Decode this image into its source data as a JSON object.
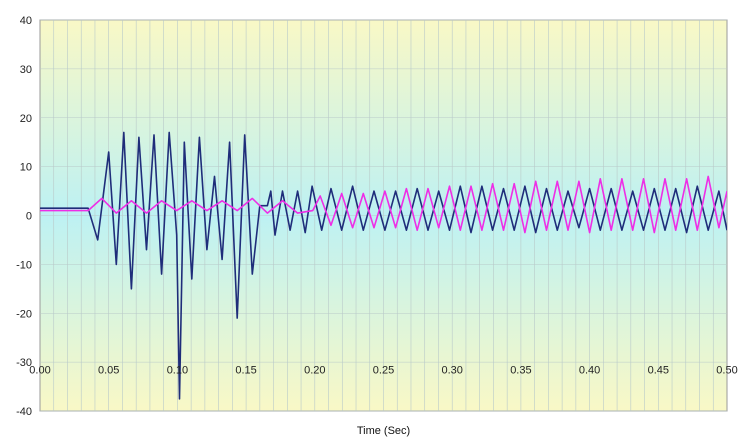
{
  "chart_data": {
    "type": "line",
    "title": "",
    "xlabel": "Time (Sec)",
    "ylabel": "",
    "xlim": [
      0,
      0.5
    ],
    "ylim": [
      -40,
      40
    ],
    "x_ticks": [
      0.0,
      0.05,
      0.1,
      0.15,
      0.2,
      0.25,
      0.3,
      0.35,
      0.4,
      0.45,
      0.5
    ],
    "x_tick_labels": [
      "0.00",
      "0.05",
      "0.10",
      "0.15",
      "0.20",
      "0.25",
      "0.30",
      "0.35",
      "0.40",
      "0.45",
      "0.50"
    ],
    "y_ticks": [
      -40,
      -30,
      -20,
      -10,
      0,
      10,
      20,
      30,
      40
    ],
    "y_tick_labels": [
      "-40",
      "-30",
      "-20",
      "-10",
      "0",
      "10",
      "20",
      "30",
      "40"
    ],
    "x_minor_step": 0.01,
    "grid": true,
    "legend": "none",
    "background_gradient": [
      "#f9f8c6",
      "#bdf1f3",
      "#f9f8c6"
    ],
    "series": [
      {
        "color": "#1f2d7a",
        "x": [
          0.0,
          0.035,
          0.042,
          0.05,
          0.0555,
          0.061,
          0.0665,
          0.072,
          0.0775,
          0.083,
          0.0885,
          0.094,
          0.0995,
          0.1015,
          0.105,
          0.1105,
          0.116,
          0.1215,
          0.127,
          0.1325,
          0.138,
          0.1435,
          0.149,
          0.1545,
          0.16,
          0.1655,
          0.168,
          0.171,
          0.1765,
          0.182,
          0.1875,
          0.193,
          0.198,
          0.205,
          0.2118,
          0.2196,
          0.2275,
          0.2353,
          0.2431,
          0.251,
          0.2588,
          0.2667,
          0.2745,
          0.2824,
          0.2902,
          0.298,
          0.3059,
          0.3137,
          0.3216,
          0.3294,
          0.3373,
          0.3451,
          0.3529,
          0.3608,
          0.3686,
          0.3765,
          0.3843,
          0.3922,
          0.4,
          0.4078,
          0.4157,
          0.4235,
          0.4314,
          0.4392,
          0.4471,
          0.4549,
          0.4627,
          0.4706,
          0.4784,
          0.4863,
          0.4941,
          0.5
        ],
        "y": [
          1.5,
          1.5,
          -5.0,
          13.0,
          -10.0,
          17.0,
          -15.0,
          16.0,
          -7.0,
          16.5,
          -12.0,
          17.0,
          -4.0,
          -37.5,
          15.0,
          -13.0,
          16.0,
          -7.0,
          8.0,
          -9.0,
          15.0,
          -21.0,
          16.5,
          -12.0,
          2.0,
          2.0,
          5.0,
          -4.0,
          5.0,
          -3.0,
          5.0,
          -3.5,
          6.0,
          -3.0,
          5.5,
          -3.0,
          6.0,
          -3.0,
          5.0,
          -3.0,
          5.0,
          -3.0,
          5.5,
          -3.0,
          5.0,
          -3.0,
          6.0,
          -3.5,
          6.0,
          -3.0,
          5.5,
          -3.0,
          6.0,
          -3.5,
          5.5,
          -3.0,
          5.0,
          -2.5,
          5.5,
          -3.0,
          5.5,
          -3.0,
          5.0,
          -3.0,
          5.5,
          -3.0,
          5.5,
          -3.5,
          6.0,
          -3.0,
          5.0,
          -3.0
        ]
      },
      {
        "color": "#ee2ee6",
        "x": [
          0.0,
          0.035,
          0.045,
          0.0555,
          0.0665,
          0.0775,
          0.0885,
          0.0995,
          0.1105,
          0.1215,
          0.1325,
          0.1435,
          0.1545,
          0.1655,
          0.1765,
          0.1875,
          0.1985,
          0.2039,
          0.2118,
          0.2196,
          0.2275,
          0.2353,
          0.2431,
          0.251,
          0.2588,
          0.2667,
          0.2745,
          0.2824,
          0.2902,
          0.298,
          0.3059,
          0.3137,
          0.3216,
          0.3294,
          0.3373,
          0.3451,
          0.3529,
          0.3608,
          0.3686,
          0.3765,
          0.3843,
          0.3922,
          0.4,
          0.4078,
          0.4157,
          0.4235,
          0.4314,
          0.4392,
          0.4471,
          0.4549,
          0.4627,
          0.4706,
          0.4784,
          0.4863,
          0.4941,
          0.5
        ],
        "y": [
          1.0,
          1.0,
          3.5,
          0.5,
          3.0,
          0.5,
          3.0,
          1.0,
          3.0,
          1.0,
          3.0,
          1.0,
          3.5,
          0.5,
          3.0,
          0.5,
          1.0,
          4.0,
          -2.0,
          4.5,
          -2.5,
          4.5,
          -2.5,
          5.0,
          -2.5,
          5.5,
          -3.0,
          5.5,
          -2.5,
          6.0,
          -3.0,
          6.0,
          -3.0,
          6.5,
          -3.0,
          6.5,
          -3.5,
          7.0,
          -3.0,
          7.0,
          -3.0,
          7.0,
          -3.5,
          7.5,
          -3.0,
          7.5,
          -3.0,
          7.5,
          -3.5,
          7.5,
          -3.0,
          7.5,
          -3.0,
          8.0,
          -2.5,
          5.0
        ]
      }
    ]
  }
}
